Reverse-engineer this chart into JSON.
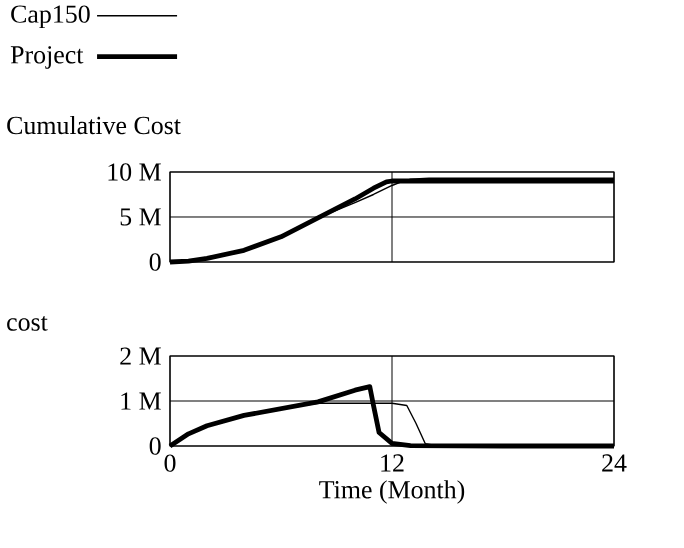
{
  "chart_data": [
    {
      "type": "line",
      "title": "Cumulative Cost",
      "legend": "top",
      "grid": true,
      "tick_labels": "y",
      "xlim": [
        0,
        24
      ],
      "xticks": [
        0,
        12,
        24
      ],
      "ylim": [
        0,
        10000000
      ],
      "yticks": [
        0,
        {
          "value": 5000000,
          "label": "5 M"
        },
        {
          "value": 10000000,
          "label": "10 M"
        }
      ],
      "series": [
        {
          "name": "Cap150",
          "color": "#000000",
          "x": [
            0,
            2,
            4,
            6,
            8,
            10,
            11,
            12,
            12.5,
            13,
            14,
            18,
            24
          ],
          "values": [
            0,
            400000,
            1300000,
            2800000,
            4900000,
            6600000,
            7500000,
            8500000,
            8900000,
            9200000,
            9300000,
            9300000,
            9300000
          ]
        },
        {
          "name": "Project",
          "color": "#000000",
          "x": [
            0,
            1,
            2,
            4,
            6,
            8,
            10,
            11,
            11.7,
            12,
            13,
            18,
            24
          ],
          "values": [
            0,
            100000,
            400000,
            1300000,
            2800000,
            4900000,
            7000000,
            8200000,
            8900000,
            9000000,
            9000000,
            9000000,
            9000000
          ]
        }
      ]
    },
    {
      "type": "line",
      "title": "cost",
      "xlabel": "Time (Month)",
      "grid": true,
      "xlim": [
        0,
        24
      ],
      "xticks": [
        0,
        12,
        24
      ],
      "ylim": [
        0,
        2000000
      ],
      "yticks": [
        0,
        {
          "value": 1000000,
          "label": "1 M"
        },
        {
          "value": 2000000,
          "label": "2 M"
        }
      ],
      "series": [
        {
          "color": "#000000",
          "x": [
            0,
            1,
            2,
            4,
            6,
            8,
            10,
            12,
            12.8,
            13.3,
            13.8,
            14.5,
            18,
            24
          ],
          "values": [
            0,
            270000,
            450000,
            680000,
            830000,
            950000,
            950000,
            950000,
            900000,
            500000,
            50000,
            0,
            0,
            0
          ]
        },
        {
          "color": "#000000",
          "x": [
            0,
            1,
            2,
            4,
            6,
            8,
            10,
            10.8,
            11,
            11.3,
            12,
            13,
            18,
            24
          ],
          "values": [
            0,
            270000,
            450000,
            680000,
            830000,
            980000,
            1240000,
            1320000,
            900000,
            300000,
            60000,
            10000,
            0,
            0
          ]
        }
      ]
    }
  ]
}
